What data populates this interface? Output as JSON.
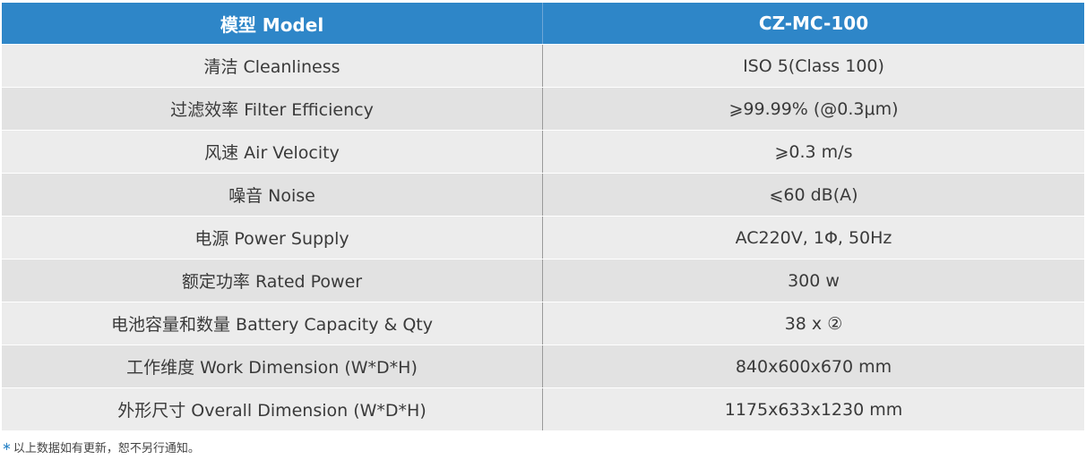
{
  "table": {
    "header": {
      "left": "模型 Model",
      "right": "CZ-MC-100"
    },
    "rows": [
      {
        "label": "清洁 Cleanliness",
        "value": "ISO 5(Class 100)"
      },
      {
        "label": "过滤效率 Filter Efficiency",
        "value": "⩾99.99% (@0.3μm)"
      },
      {
        "label": "风速 Air Velocity",
        "value": "⩾0.3 m/s"
      },
      {
        "label": "噪音 Noise",
        "value": "⩽60 dB(A)"
      },
      {
        "label": "电源 Power Supply",
        "value": "AC220V, 1Φ, 50Hz"
      },
      {
        "label": "额定功率 Rated Power",
        "value": "300 w"
      },
      {
        "label": "电池容量和数量 Battery Capacity & Qty",
        "value": "38 x ②"
      },
      {
        "label": "工作维度 Work Dimension (W*D*H)",
        "value": "840x600x670 mm"
      },
      {
        "label": "外形尺寸 Overall Dimension (W*D*H)",
        "value": "1175x633x1230 mm"
      }
    ]
  },
  "footnote": {
    "marker": "∗",
    "text": "以上数据如有更新，恕不另行通知。"
  },
  "colors": {
    "header_bg": "#2e86c8",
    "row_light": "#ececec",
    "row_dark": "#e2e2e2"
  }
}
